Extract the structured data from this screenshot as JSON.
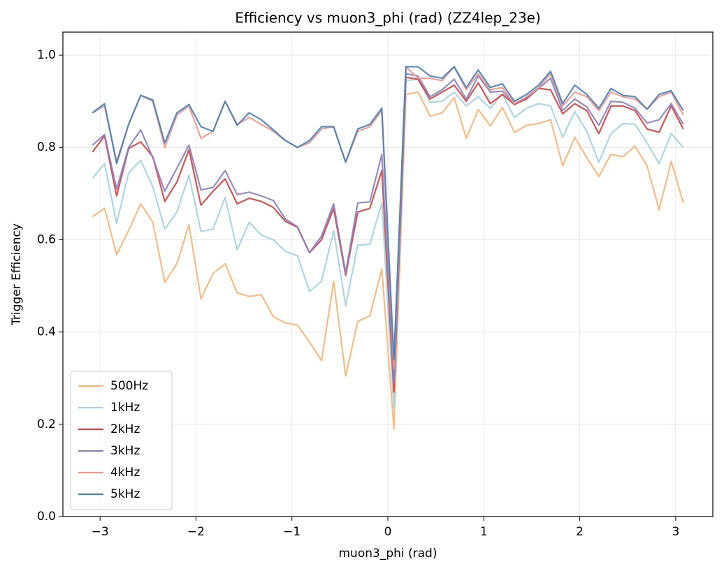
{
  "chart_data": {
    "type": "line",
    "title": "Efficiency vs muon3_phi (rad) (ZZ4lep_23e)",
    "xlabel": "muon3_phi (rad)",
    "ylabel": "Trigger Efficiency",
    "x": [
      -3.079,
      -2.953,
      -2.827,
      -2.702,
      -2.576,
      -2.45,
      -2.325,
      -2.199,
      -2.073,
      -1.948,
      -1.822,
      -1.696,
      -1.571,
      -1.445,
      -1.319,
      -1.194,
      -1.068,
      -0.942,
      -0.817,
      -0.691,
      -0.565,
      -0.44,
      -0.314,
      -0.188,
      -0.063,
      0.063,
      0.188,
      0.314,
      0.44,
      0.565,
      0.691,
      0.817,
      0.942,
      1.068,
      1.194,
      1.319,
      1.445,
      1.571,
      1.696,
      1.822,
      1.948,
      2.073,
      2.199,
      2.325,
      2.45,
      2.576,
      2.702,
      2.827,
      2.953,
      3.079
    ],
    "series": [
      {
        "name": "500Hz",
        "color": "#f4b67a",
        "values": [
          0.65,
          0.668,
          0.568,
          0.62,
          0.678,
          0.638,
          0.508,
          0.548,
          0.633,
          0.472,
          0.527,
          0.548,
          0.485,
          0.477,
          0.481,
          0.433,
          0.42,
          0.415,
          0.378,
          0.338,
          0.51,
          0.305,
          0.423,
          0.435,
          0.537,
          0.19,
          0.915,
          0.92,
          0.868,
          0.875,
          0.908,
          0.82,
          0.882,
          0.847,
          0.887,
          0.833,
          0.848,
          0.852,
          0.86,
          0.76,
          0.822,
          0.778,
          0.737,
          0.785,
          0.78,
          0.803,
          0.76,
          0.665,
          0.77,
          0.68
        ]
      },
      {
        "name": "1kHz",
        "color": "#a8d0de",
        "values": [
          0.733,
          0.765,
          0.635,
          0.745,
          0.772,
          0.715,
          0.623,
          0.66,
          0.74,
          0.618,
          0.623,
          0.692,
          0.578,
          0.638,
          0.61,
          0.6,
          0.575,
          0.565,
          0.488,
          0.51,
          0.62,
          0.457,
          0.588,
          0.59,
          0.68,
          0.235,
          0.945,
          0.948,
          0.898,
          0.9,
          0.92,
          0.89,
          0.91,
          0.885,
          0.915,
          0.865,
          0.885,
          0.895,
          0.89,
          0.822,
          0.878,
          0.835,
          0.768,
          0.83,
          0.852,
          0.85,
          0.81,
          0.765,
          0.83,
          0.8
        ]
      },
      {
        "name": "2kHz",
        "color": "#cc4444",
        "values": [
          0.79,
          0.825,
          0.695,
          0.798,
          0.812,
          0.78,
          0.683,
          0.725,
          0.795,
          0.675,
          0.705,
          0.732,
          0.678,
          0.69,
          0.683,
          0.67,
          0.64,
          0.627,
          0.572,
          0.6,
          0.668,
          0.523,
          0.66,
          0.668,
          0.75,
          0.27,
          0.952,
          0.948,
          0.905,
          0.92,
          0.935,
          0.9,
          0.94,
          0.895,
          0.915,
          0.893,
          0.905,
          0.928,
          0.925,
          0.873,
          0.895,
          0.88,
          0.83,
          0.89,
          0.89,
          0.88,
          0.84,
          0.833,
          0.89,
          0.84
        ]
      },
      {
        "name": "3kHz",
        "color": "#8a80ba",
        "values": [
          0.805,
          0.828,
          0.71,
          0.8,
          0.838,
          0.778,
          0.705,
          0.755,
          0.805,
          0.708,
          0.713,
          0.75,
          0.698,
          0.703,
          0.695,
          0.685,
          0.645,
          0.628,
          0.572,
          0.608,
          0.678,
          0.528,
          0.68,
          0.682,
          0.785,
          0.29,
          0.96,
          0.955,
          0.91,
          0.925,
          0.948,
          0.905,
          0.955,
          0.92,
          0.922,
          0.895,
          0.908,
          0.928,
          0.95,
          0.88,
          0.905,
          0.888,
          0.848,
          0.9,
          0.898,
          0.885,
          0.853,
          0.86,
          0.895,
          0.85
        ]
      },
      {
        "name": "4kHz",
        "color": "#f0968a",
        "values": [
          0.875,
          0.89,
          0.77,
          0.85,
          0.913,
          0.9,
          0.8,
          0.87,
          0.89,
          0.82,
          0.835,
          0.9,
          0.85,
          0.865,
          0.85,
          0.835,
          0.815,
          0.8,
          0.81,
          0.84,
          0.845,
          0.768,
          0.835,
          0.845,
          0.88,
          0.32,
          0.975,
          0.95,
          0.95,
          0.945,
          0.975,
          0.925,
          0.96,
          0.925,
          0.93,
          0.895,
          0.91,
          0.93,
          0.96,
          0.89,
          0.92,
          0.91,
          0.88,
          0.92,
          0.91,
          0.905,
          0.883,
          0.91,
          0.92,
          0.87
        ]
      },
      {
        "name": "5kHz",
        "color": "#4a7fb0",
        "values": [
          0.875,
          0.895,
          0.765,
          0.85,
          0.913,
          0.903,
          0.81,
          0.875,
          0.893,
          0.845,
          0.835,
          0.9,
          0.848,
          0.875,
          0.86,
          0.838,
          0.815,
          0.8,
          0.815,
          0.845,
          0.845,
          0.768,
          0.84,
          0.85,
          0.885,
          0.34,
          0.975,
          0.975,
          0.955,
          0.95,
          0.975,
          0.93,
          0.968,
          0.93,
          0.938,
          0.9,
          0.915,
          0.935,
          0.965,
          0.895,
          0.935,
          0.915,
          0.885,
          0.928,
          0.913,
          0.91,
          0.883,
          0.915,
          0.923,
          0.88
        ]
      }
    ],
    "xlim": [
      -3.387,
      3.387
    ],
    "ylim": [
      0,
      1.05
    ],
    "xticks": [
      {
        "value": -3,
        "label": "−3"
      },
      {
        "value": -2,
        "label": "−2"
      },
      {
        "value": -1,
        "label": "−1"
      },
      0,
      1,
      2,
      3
    ],
    "yticks": [
      {
        "value": 0,
        "label": "0.0"
      },
      0.2,
      0.4,
      0.6,
      0.8,
      {
        "value": 1,
        "label": "1.0"
      }
    ],
    "grid": true,
    "legend": "lower left"
  }
}
